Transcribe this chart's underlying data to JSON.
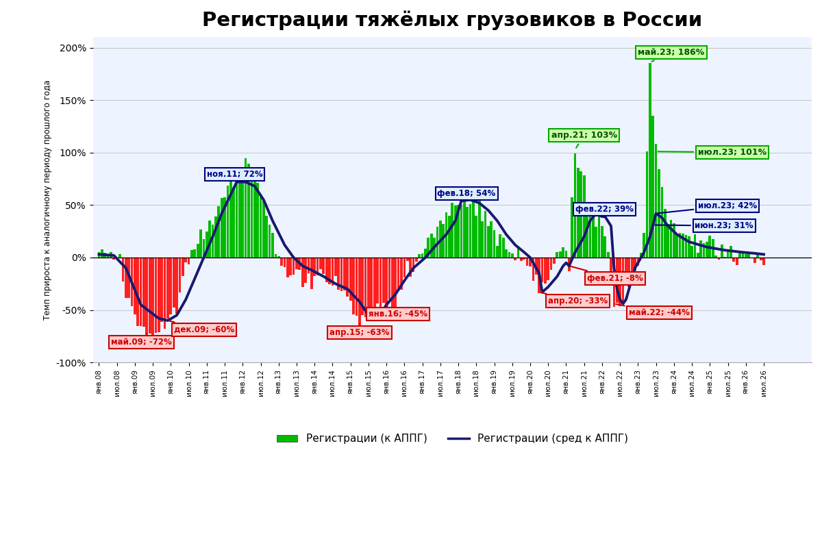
{
  "title": "Регистрации тяжёлых грузовиков в России",
  "ylabel": "Темп прироста к аналогичному периоду прошлого года",
  "ylim": [
    -100,
    210
  ],
  "yticks": [
    -100,
    -50,
    0,
    50,
    100,
    150,
    200
  ],
  "ytick_labels": [
    "-100%",
    "-50%",
    "0%",
    "50%",
    "100%",
    "150%",
    "200%"
  ],
  "bg_color": "#FFFFFF",
  "grid_color": "#C8C8C8",
  "bar_positive_color": "#00BB00",
  "bar_negative_color": "#FF2020",
  "line_color": "#191970",
  "legend_bar_label": "Регистрации (к АППГ)",
  "legend_line_label": "Регистрации (сред к АППГ)"
}
